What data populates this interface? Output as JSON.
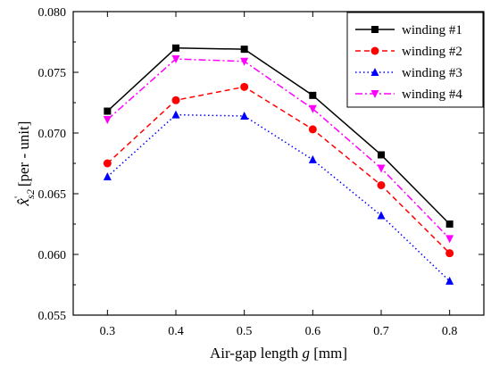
{
  "chart_data": {
    "type": "line",
    "x": [
      0.3,
      0.4,
      0.5,
      0.6,
      0.7,
      0.8
    ],
    "xlim": [
      0.25,
      0.85
    ],
    "ylim": [
      0.055,
      0.08
    ],
    "x_ticks": [
      0.3,
      0.4,
      0.5,
      0.6,
      0.7,
      0.8
    ],
    "y_ticks": [
      0.055,
      0.06,
      0.065,
      0.07,
      0.075,
      0.08
    ],
    "x_tick_labels": [
      "0.3",
      "0.4",
      "0.5",
      "0.6",
      "0.7",
      "0.8"
    ],
    "y_tick_labels": [
      "0.055",
      "0.060",
      "0.065",
      "0.070",
      "0.075",
      "0.080"
    ],
    "xlabel": "Air-gap length g [mm]",
    "xlabel_parts": {
      "pre": "Air-gap length ",
      "italic": "g",
      "post": " [mm]"
    },
    "ylabel": "x̂'s2 [per - unit]",
    "ylabel_parts": {
      "symbol": "x̂",
      "prime": "'",
      "subscript": "s2",
      "unit": "[per - unit]"
    },
    "grid": false,
    "legend_position": "top-right",
    "series": [
      {
        "name": "winding #1",
        "values": [
          0.0718,
          0.077,
          0.0769,
          0.0731,
          0.0682,
          0.0625
        ],
        "color": "#000000",
        "dash": "solid",
        "marker": "square"
      },
      {
        "name": "winding #2",
        "values": [
          0.0675,
          0.0727,
          0.0738,
          0.0703,
          0.0657,
          0.0601
        ],
        "color": "#ff0000",
        "dash": "dash",
        "marker": "circle"
      },
      {
        "name": "winding #3",
        "values": [
          0.0664,
          0.0715,
          0.0714,
          0.0678,
          0.0632,
          0.0578
        ],
        "color": "#0000ff",
        "dash": "dot",
        "marker": "triangle-up"
      },
      {
        "name": "winding #4",
        "values": [
          0.0711,
          0.0761,
          0.0759,
          0.072,
          0.0671,
          0.0613
        ],
        "color": "#ff00ff",
        "dash": "dashdot",
        "marker": "triangle-down"
      }
    ]
  }
}
